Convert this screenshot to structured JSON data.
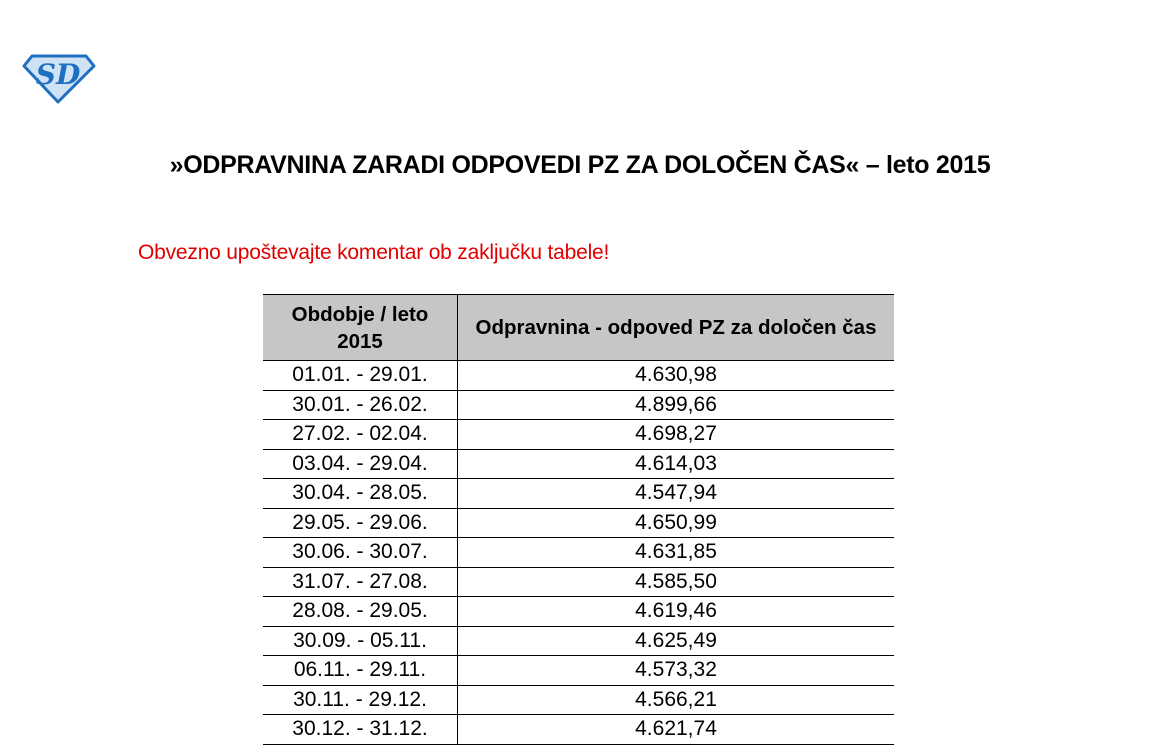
{
  "logo": {
    "text": "SD",
    "color": "#1f6fbf"
  },
  "title": "»ODPRAVNINA ZARADI ODPOVEDI PZ ZA DOLOČEN ČAS« – leto 2015",
  "note": "Obvezno upoštevajte komentar ob zaključku tabele!",
  "note_color": "#e00000",
  "table": {
    "headers": [
      "Obdobje / leto 2015",
      "Odpravnina - odpoved PZ za določen čas"
    ],
    "rows": [
      [
        "01.01. - 29.01.",
        "4.630,98"
      ],
      [
        "30.01. - 26.02.",
        "4.899,66"
      ],
      [
        "27.02. - 02.04.",
        "4.698,27"
      ],
      [
        "03.04. - 29.04.",
        "4.614,03"
      ],
      [
        "30.04. - 28.05.",
        "4.547,94"
      ],
      [
        "29.05. - 29.06.",
        "4.650,99"
      ],
      [
        "30.06. - 30.07.",
        "4.631,85"
      ],
      [
        "31.07. - 27.08.",
        "4.585,50"
      ],
      [
        "28.08. - 29.05.",
        "4.619,46"
      ],
      [
        "30.09. - 05.11.",
        "4.625,49"
      ],
      [
        "06.11. - 29.11.",
        "4.573,32"
      ],
      [
        "30.11. - 29.12.",
        "4.566,21"
      ],
      [
        "30.12. - 31.12.",
        "4.621,74"
      ]
    ]
  }
}
